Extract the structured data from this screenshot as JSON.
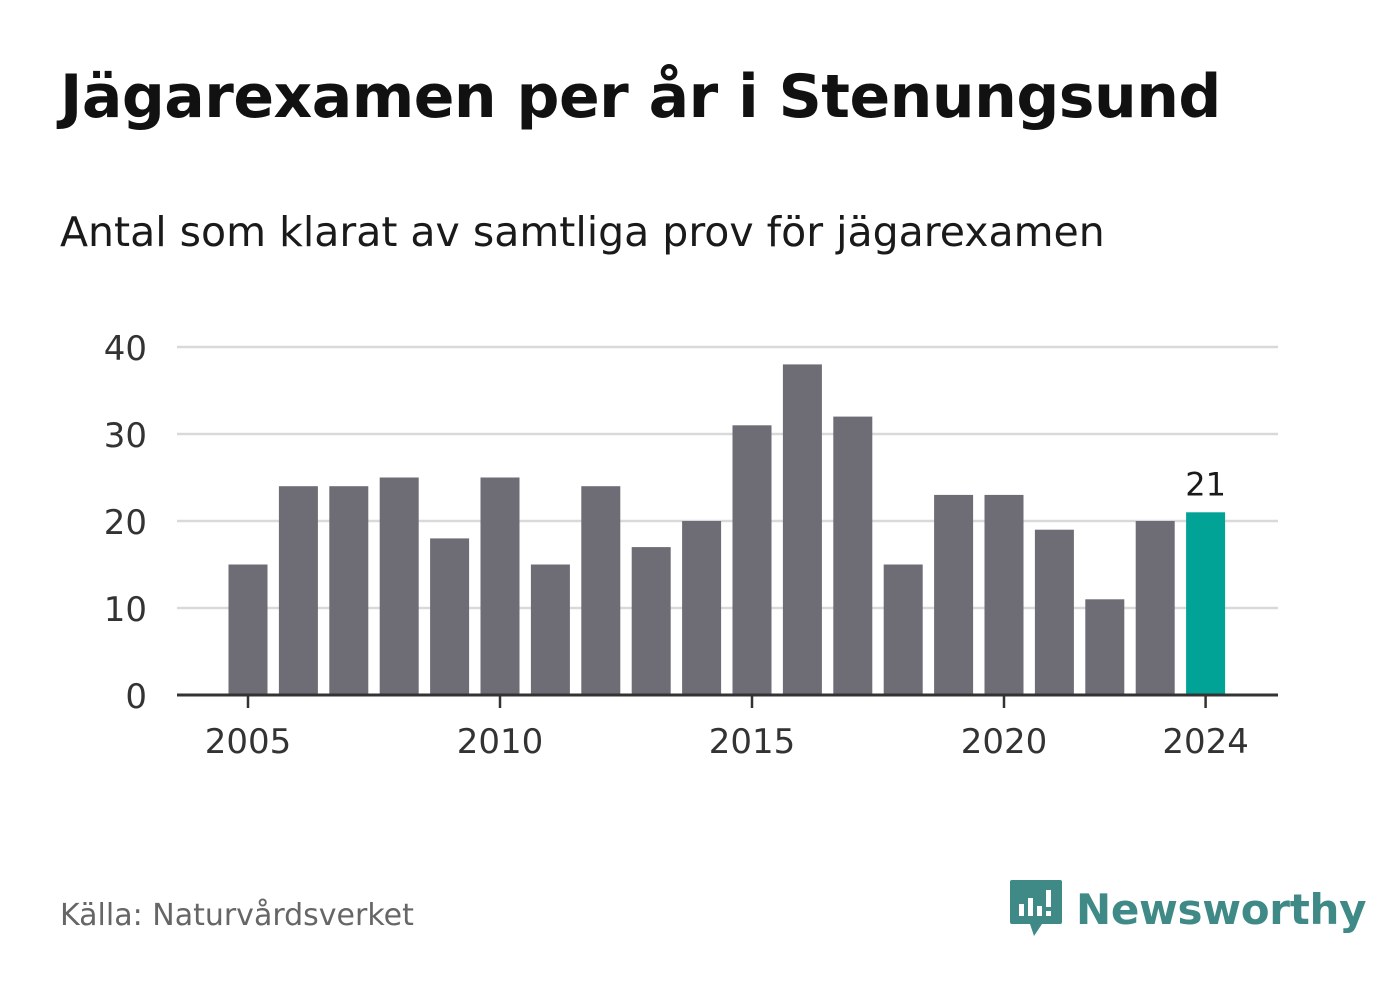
{
  "header": {
    "title": "Jägarexamen per år i Stenungsund",
    "subtitle": "Antal som klarat av samtliga prov för jägarexamen"
  },
  "footer": {
    "source_label": "Källa:",
    "source_name": "Naturvårdsverket",
    "brand_name": "Newsworthy",
    "brand_icon": "bar-chart-speech-bubble-icon"
  },
  "colors": {
    "bar": "#6e6d75",
    "highlight": "#00a396",
    "gridline": "#d9d9d9",
    "axis": "#333333",
    "tick_text": "#333333",
    "brand": "#3f8a86"
  },
  "chart_data": {
    "type": "bar",
    "title": "Jägarexamen per år i Stenungsund",
    "subtitle": "Antal som klarat av samtliga prov för jägarexamen",
    "xlabel": "",
    "ylabel": "",
    "categories": [
      2005,
      2006,
      2007,
      2008,
      2009,
      2010,
      2011,
      2012,
      2013,
      2014,
      2015,
      2016,
      2017,
      2018,
      2019,
      2020,
      2021,
      2022,
      2023,
      2024
    ],
    "values": [
      15,
      24,
      24,
      25,
      18,
      25,
      15,
      24,
      17,
      20,
      31,
      38,
      32,
      15,
      23,
      23,
      19,
      11,
      20,
      21
    ],
    "highlight_category": 2024,
    "highlight_label": "21",
    "ylim": [
      0,
      40
    ],
    "yticks": [
      0,
      10,
      20,
      30,
      40
    ],
    "xticks": [
      2005,
      2010,
      2015,
      2020,
      2024
    ],
    "grid": true,
    "legend": "none"
  }
}
